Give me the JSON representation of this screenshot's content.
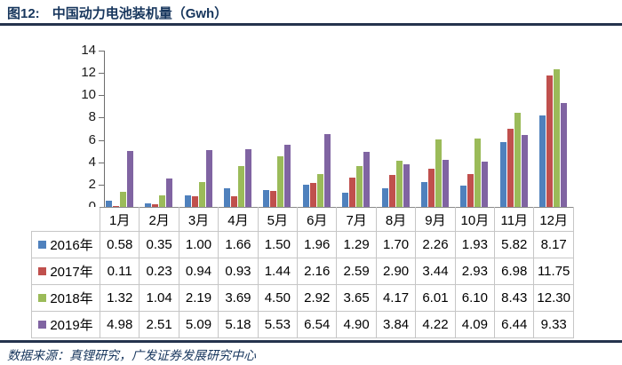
{
  "header": {
    "figure_label": "图12:",
    "title": "中国动力电池装机量（Gwh）"
  },
  "footer": {
    "source": "数据来源：真锂研究，广发证券发展研究中心"
  },
  "chart_data": {
    "type": "bar",
    "title": "中国动力电池装机量（Gwh）",
    "xlabel": "",
    "ylabel": "",
    "categories": [
      "1月",
      "2月",
      "3月",
      "4月",
      "5月",
      "6月",
      "7月",
      "8月",
      "9月",
      "10月",
      "11月",
      "12月"
    ],
    "series": [
      {
        "name": "2016年",
        "color": "#4F81BD",
        "values": [
          0.58,
          0.35,
          1.0,
          1.66,
          1.5,
          1.96,
          1.29,
          1.7,
          2.26,
          1.93,
          5.82,
          8.17
        ]
      },
      {
        "name": "2017年",
        "color": "#C0504D",
        "values": [
          0.11,
          0.23,
          0.94,
          0.93,
          1.44,
          2.16,
          2.59,
          2.9,
          3.44,
          2.93,
          6.98,
          11.75
        ]
      },
      {
        "name": "2018年",
        "color": "#9BBB59",
        "values": [
          1.32,
          1.04,
          2.19,
          3.69,
          4.5,
          2.92,
          3.65,
          4.17,
          6.01,
          6.1,
          8.43,
          12.3
        ]
      },
      {
        "name": "2019年",
        "color": "#8064A2",
        "values": [
          4.98,
          2.51,
          5.09,
          5.18,
          5.53,
          6.54,
          4.9,
          3.84,
          4.22,
          4.09,
          6.44,
          9.33
        ]
      }
    ],
    "ylim": [
      0,
      14
    ],
    "yticks": [
      0,
      2,
      4,
      6,
      8,
      10,
      12,
      14
    ],
    "grid": false,
    "legend_position": "data-table-left",
    "value_format_decimals": 2
  },
  "colors": {
    "accent_navy": "#17365D",
    "rule": "#25334D",
    "axis": "#6E6E6E",
    "table_border": "#C6C6C6",
    "series_2016": "#4F81BD",
    "series_2017": "#C0504D",
    "series_2018": "#9BBB59",
    "series_2019": "#8064A2"
  }
}
